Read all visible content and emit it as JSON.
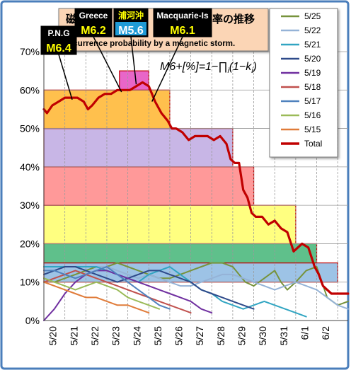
{
  "chart_data": {
    "type": "line",
    "title_left": "磁",
    "title_right": "率の推移",
    "subtitle": "ccurrence probability by a magnetic storm.",
    "formula": {
      "lhs": "M6+[%]=1−∏",
      "sub": "i",
      "rhs": "(1−k",
      "sub2": "i",
      "close": ")"
    },
    "x_ticks": [
      "5/20",
      "5/21",
      "5/22",
      "5/23",
      "5/24",
      "5/25",
      "5/26",
      "5/27",
      "5/28",
      "5/29",
      "5/30",
      "5/31",
      "6/1",
      "6/2"
    ],
    "y_ticks": [
      "0%",
      "10%",
      "20%",
      "30%",
      "40%",
      "50%",
      "60%",
      "70%"
    ],
    "ylim": [
      0,
      70
    ],
    "xlim": [
      19.0,
      33.5
    ],
    "grid": true,
    "legend_position": "right",
    "legend": [
      {
        "name": "5/25",
        "color": "#77933c"
      },
      {
        "name": "5/22",
        "color": "#95b3d7"
      },
      {
        "name": "5/21",
        "color": "#31a5c2"
      },
      {
        "name": "5/20",
        "color": "#2e4a8a"
      },
      {
        "name": "5/19",
        "color": "#7030a0"
      },
      {
        "name": "5/18",
        "color": "#c0504d"
      },
      {
        "name": "5/17",
        "color": "#4f81bd"
      },
      {
        "name": "5/16",
        "color": "#9bbb59"
      },
      {
        "name": "5/15",
        "color": "#e07b39"
      },
      {
        "name": "Total",
        "color": "#c00000"
      }
    ],
    "bands": [
      {
        "x0": 19.0,
        "x1": 33.0,
        "y0": 10,
        "y1": 15,
        "fill": "#9dc3e6",
        "stroke": "#c00000"
      },
      {
        "x0": 19.0,
        "x1": 32.0,
        "y0": 15,
        "y1": 20,
        "fill": "#5fc08b",
        "stroke": "#c00000"
      },
      {
        "x0": 19.0,
        "x1": 31.0,
        "y0": 20,
        "y1": 30,
        "fill": "#ffff80",
        "stroke": "#c00000"
      },
      {
        "x0": 19.0,
        "x1": 29.0,
        "y0": 30,
        "y1": 40,
        "fill": "#ff9999",
        "stroke": "#c00000"
      },
      {
        "x0": 19.0,
        "x1": 28.0,
        "y0": 40,
        "y1": 50,
        "fill": "#c8b6e6",
        "stroke": "#c00000"
      },
      {
        "x0": 19.0,
        "x1": 25.0,
        "y0": 50,
        "y1": 60,
        "fill": "#ffc04d",
        "stroke": "#c00000"
      },
      {
        "x0": 22.6,
        "x1": 24.0,
        "y0": 60,
        "y1": 65,
        "fill": "#e866c8",
        "stroke": "#c00000"
      }
    ],
    "series": [
      {
        "name": "Total",
        "color": "#c00000",
        "width": 3.2,
        "x": [
          19.0,
          19.15,
          19.4,
          19.7,
          20.0,
          20.3,
          20.6,
          20.9,
          21.1,
          21.3,
          21.6,
          21.9,
          22.2,
          22.5,
          22.8,
          23.1,
          23.4,
          23.7,
          24.0,
          24.3,
          24.6,
          24.9,
          25.1,
          25.3,
          25.6,
          25.9,
          26.2,
          26.5,
          26.8,
          27.1,
          27.4,
          27.7,
          27.9,
          28.1,
          28.3,
          28.5,
          28.7,
          28.9,
          29.1,
          29.4,
          29.7,
          30.0,
          30.3,
          30.6,
          30.9,
          31.1,
          31.3,
          31.6,
          31.9,
          32.1,
          32.3,
          32.5,
          32.7,
          33.0,
          33.5
        ],
        "y": [
          55,
          54,
          56,
          57,
          58,
          58,
          58,
          57,
          55,
          56,
          58,
          59,
          59,
          60,
          60,
          60,
          61,
          62,
          61,
          57,
          54,
          52,
          50,
          50,
          49,
          47,
          48,
          48,
          48,
          47,
          48,
          46,
          42,
          41,
          41,
          34,
          32,
          28,
          27,
          27,
          25,
          26,
          24,
          23,
          18,
          19,
          20,
          19,
          14,
          12,
          9,
          8,
          7,
          7,
          7
        ]
      },
      {
        "name": "5/25",
        "color": "#77933c",
        "width": 2,
        "x": [
          19.0,
          19.5,
          20.0,
          20.5,
          21.0,
          21.5,
          22.0,
          22.5,
          23.0,
          23.5,
          24.0,
          24.5,
          25.0,
          25.5,
          26.0,
          26.5,
          27.0,
          27.5,
          28.0,
          28.3,
          28.6,
          29.0,
          29.5,
          30.0,
          30.3,
          30.6,
          31.0,
          31.5,
          32.0,
          32.5,
          33.0,
          33.5
        ],
        "y": [
          11,
          10,
          11,
          12,
          13,
          14,
          14,
          15,
          14,
          13,
          12,
          11,
          11,
          12,
          13,
          14,
          15,
          15,
          14,
          12,
          10,
          9,
          11,
          13,
          10,
          8,
          10,
          13,
          14,
          6,
          4,
          5
        ]
      },
      {
        "name": "5/22",
        "color": "#95b3d7",
        "width": 2,
        "x": [
          19.0,
          20.0,
          21.0,
          21.5,
          22.0,
          22.5,
          23.0,
          23.5,
          24.0,
          24.5,
          25.0,
          25.5,
          26.0,
          26.5,
          27.0,
          27.5,
          28.0,
          28.5,
          29.0,
          29.5,
          30.0,
          30.5,
          31.0,
          31.5,
          32.0,
          32.5,
          33.0,
          33.5
        ],
        "y": [
          14,
          14,
          14,
          14,
          14,
          13,
          12,
          11,
          12,
          11,
          10,
          9,
          9,
          10,
          11,
          12,
          12,
          11,
          10,
          9,
          8,
          9,
          10,
          9,
          8,
          6,
          4,
          3
        ]
      },
      {
        "name": "5/21",
        "color": "#31a5c2",
        "width": 2,
        "x": [
          19.0,
          20.0,
          21.0,
          21.5,
          22.0,
          22.5,
          23.0,
          23.5,
          24.0,
          24.5,
          25.0,
          25.5,
          26.0,
          26.5,
          27.0,
          27.5,
          28.0,
          28.5,
          29.0,
          29.5,
          30.0,
          30.5,
          31.0,
          31.5
        ],
        "y": [
          14,
          14,
          14,
          14,
          13,
          12,
          11,
          10,
          12,
          13,
          14,
          12,
          10,
          8,
          7,
          5,
          4,
          3,
          4,
          5,
          4,
          3,
          2,
          1
        ]
      },
      {
        "name": "5/20",
        "color": "#2e4a8a",
        "width": 2,
        "x": [
          19.0,
          19.5,
          20.0,
          20.5,
          21.0,
          21.5,
          22.0,
          22.5,
          23.0,
          23.5,
          24.0,
          24.5,
          25.0,
          25.5,
          26.0,
          26.5,
          27.0,
          27.5,
          28.0,
          28.5,
          29.0
        ],
        "y": [
          12,
          13,
          14,
          14,
          13,
          12,
          11,
          10,
          11,
          12,
          13,
          13,
          12,
          11,
          10,
          8,
          7,
          6,
          5,
          4,
          3
        ]
      },
      {
        "name": "5/19",
        "color": "#7030a0",
        "width": 2,
        "x": [
          19.0,
          19.5,
          20.0,
          20.5,
          21.0,
          21.5,
          22.0,
          22.5,
          23.0,
          23.5,
          24.0,
          24.5,
          25.0,
          25.5,
          26.0,
          26.5,
          27.0
        ],
        "y": [
          0,
          3,
          7,
          10,
          12,
          13,
          13,
          12,
          11,
          10,
          9,
          8,
          7,
          6,
          5,
          3,
          2
        ]
      },
      {
        "name": "5/18",
        "color": "#c0504d",
        "width": 2,
        "x": [
          19.0,
          19.5,
          20.0,
          20.5,
          21.0,
          21.5,
          22.0,
          22.5,
          23.0,
          23.5,
          24.0,
          24.5,
          25.0,
          25.5,
          26.0
        ],
        "y": [
          10,
          11,
          12,
          13,
          12,
          11,
          10,
          9,
          8,
          7,
          6,
          5,
          4,
          3,
          2
        ]
      },
      {
        "name": "5/17",
        "color": "#4f81bd",
        "width": 2,
        "x": [
          19.0,
          19.5,
          20.0,
          20.5,
          21.0,
          21.5,
          22.0,
          22.5,
          23.0,
          23.5,
          24.0,
          24.5,
          25.0
        ],
        "y": [
          13,
          13,
          12,
          11,
          12,
          13,
          14,
          12,
          10,
          8,
          6,
          4,
          3
        ]
      },
      {
        "name": "5/16",
        "color": "#9bbb59",
        "width": 2,
        "x": [
          19.0,
          19.5,
          20.0,
          20.5,
          21.0,
          21.5,
          22.0,
          22.5,
          23.0,
          23.5,
          24.0,
          24.5
        ],
        "y": [
          11,
          10,
          9,
          8,
          9,
          10,
          9,
          8,
          6,
          5,
          4,
          3
        ]
      },
      {
        "name": "5/15",
        "color": "#e07b39",
        "width": 2,
        "x": [
          19.0,
          19.5,
          20.0,
          20.5,
          21.0,
          21.5,
          22.0,
          22.5,
          23.0,
          23.5,
          24.0
        ],
        "y": [
          10,
          9,
          8,
          7,
          6,
          6,
          5,
          4,
          4,
          3,
          2
        ]
      }
    ],
    "annotations": [
      {
        "name": "P.N.G",
        "mag": "M6.4",
        "label_color": "#ffffff",
        "box_bg": "#000000",
        "mag_bg": "#000000",
        "mag_color": "#ffff00",
        "target_x": 20.35,
        "target_y": 57.5
      },
      {
        "name": "Greece",
        "mag": "M6.2",
        "label_color": "#ffffff",
        "box_bg": "#000000",
        "mag_bg": "#000000",
        "mag_color": "#ffff00",
        "target_x": 22.7,
        "target_y": 59.5
      },
      {
        "name": "浦河沖",
        "mag": "M5.6",
        "label_color": "#ffff00",
        "box_bg": "#000000",
        "mag_bg": "#1f9bd6",
        "mag_color": "#ffffff",
        "target_x": 23.4,
        "target_y": 61.5
      },
      {
        "name": "Macquarie-Is",
        "mag": "M6.1",
        "label_color": "#ffffff",
        "box_bg": "#000000",
        "mag_bg": "#000000",
        "mag_color": "#ffff00",
        "target_x": 24.15,
        "target_y": 57.0
      }
    ]
  }
}
